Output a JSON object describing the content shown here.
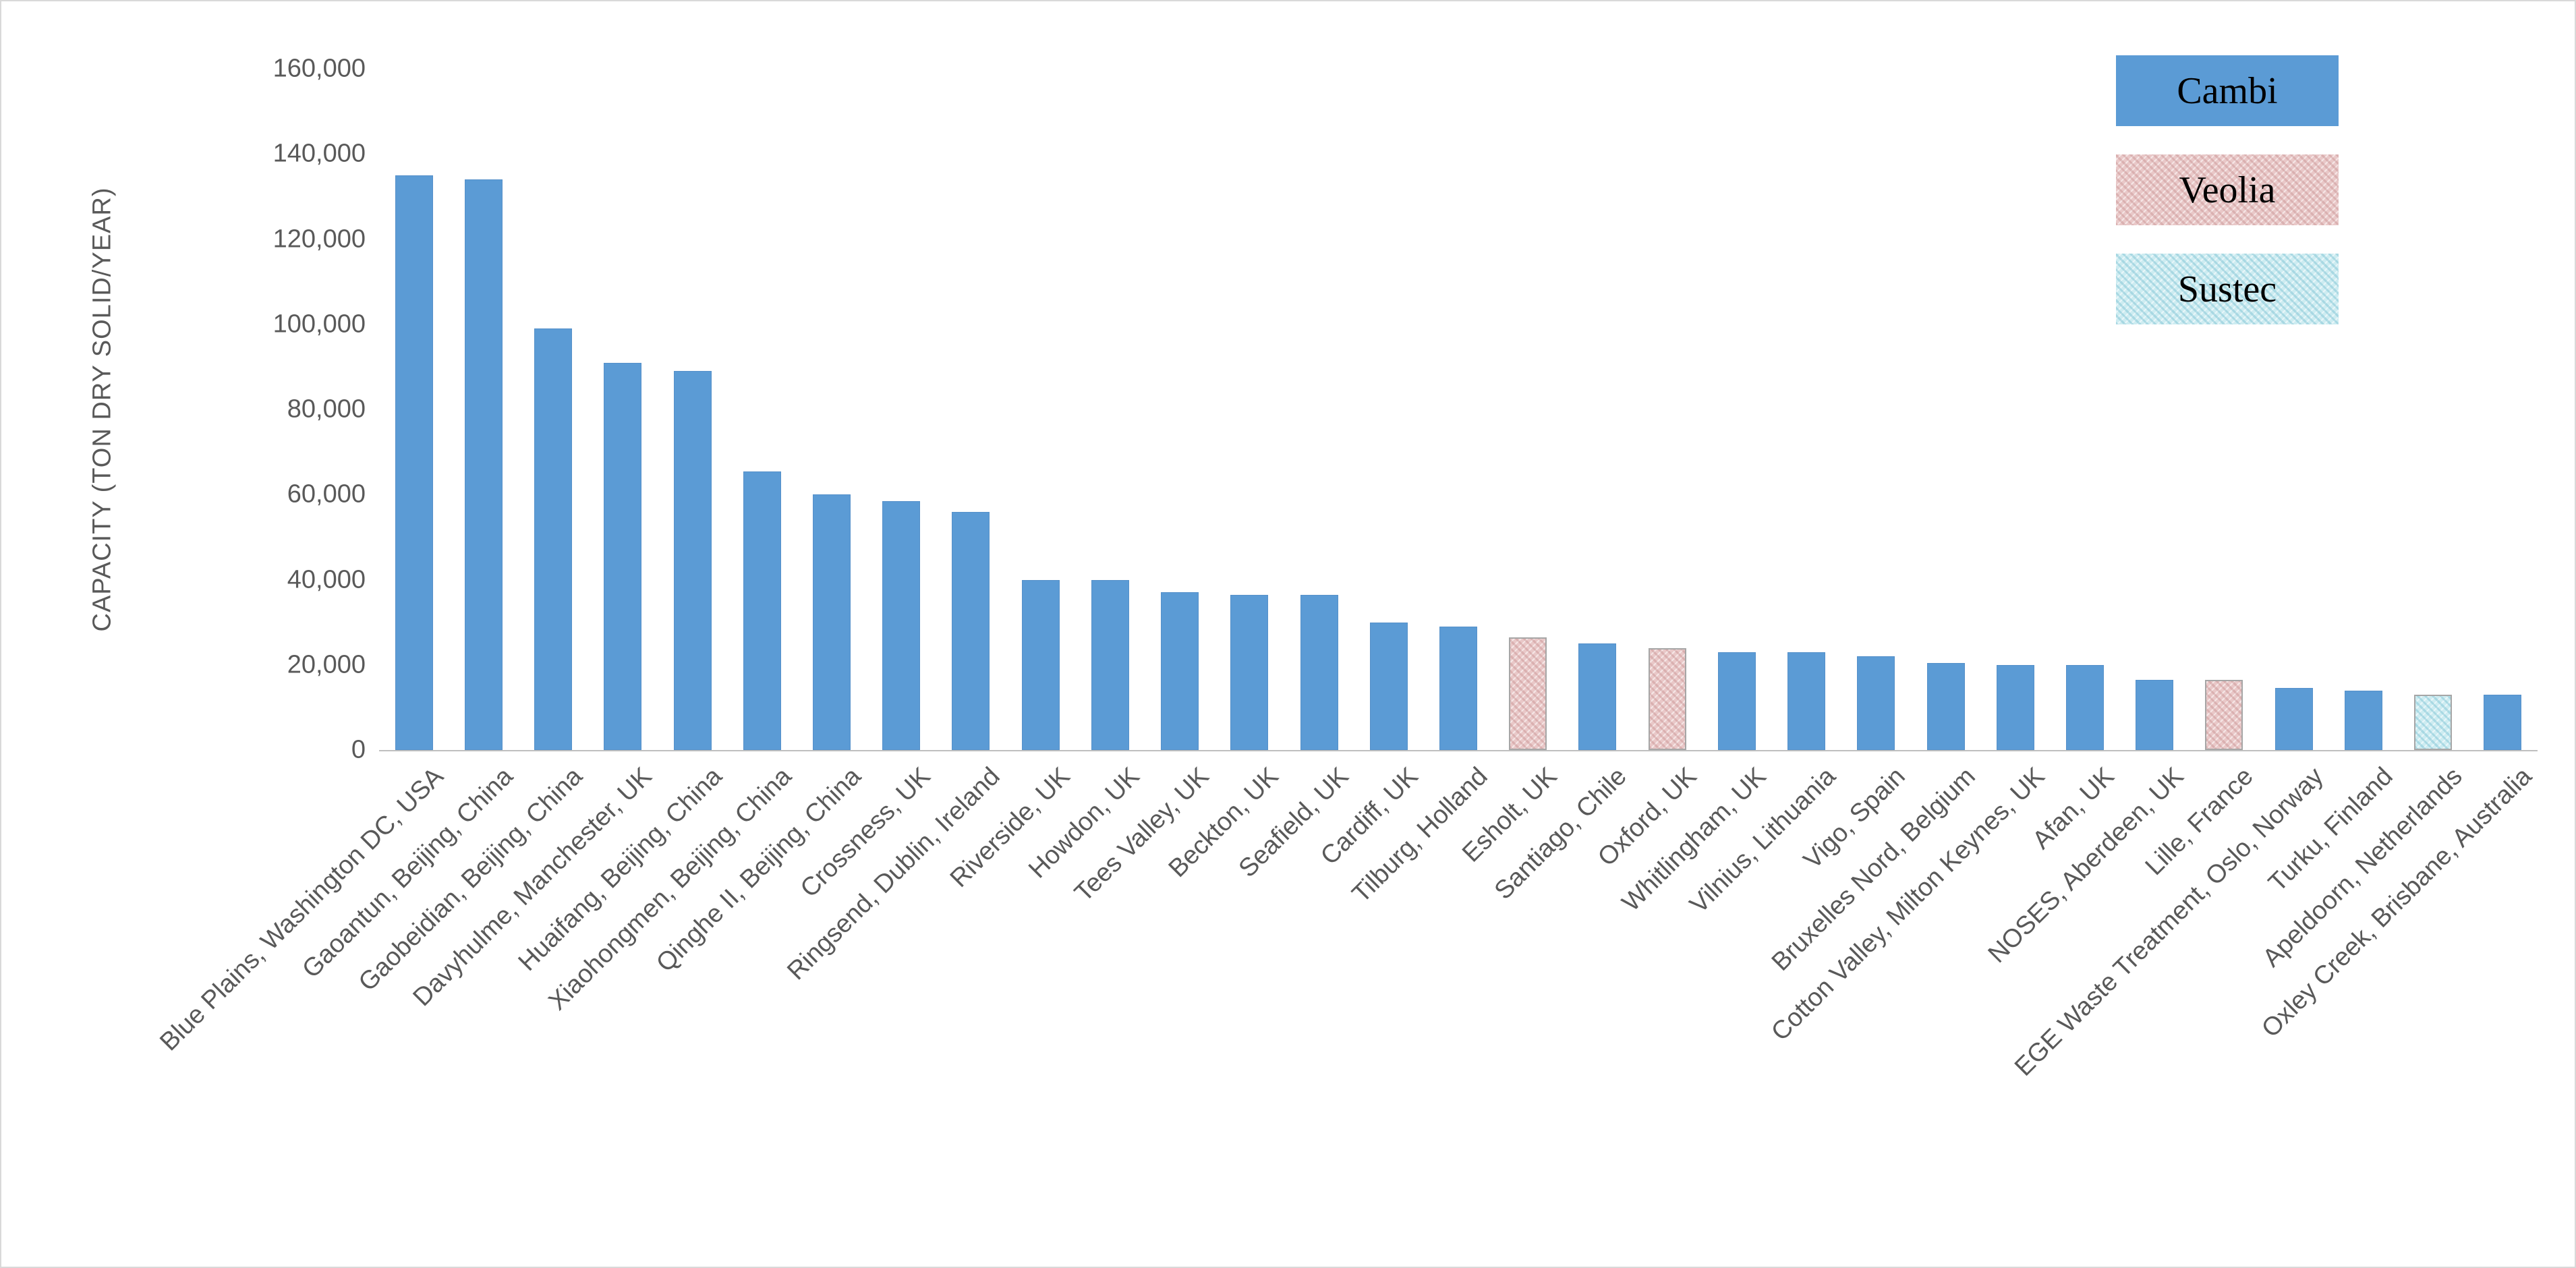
{
  "figure": {
    "background": "#FFFFFF",
    "border_color": "#D9D9D9"
  },
  "colors": {
    "cambi": "#5B9BD5",
    "veolia": "#E9C8C8",
    "sustec": "#CDECF1",
    "axis_text": "#595959",
    "bar_border": "#A6A6A6"
  },
  "legend": {
    "position": "top-right",
    "entries": [
      {
        "label": "Cambi",
        "color": "#5B9BD5",
        "texture": "solid"
      },
      {
        "label": "Veolia",
        "color": "#E9C8C8",
        "texture": "mottled"
      },
      {
        "label": "Sustec",
        "color": "#CDECF1",
        "texture": "mottled"
      }
    ]
  },
  "chart_data": {
    "type": "bar",
    "title": "",
    "xlabel": "",
    "ylabel": "CAPACITY (TON DRY SOLID/YEAR)",
    "ylim": [
      0,
      160000
    ],
    "ytick_step": 20000,
    "ytick_labels": [
      "0",
      "20,000",
      "40,000",
      "60,000",
      "80,000",
      "100,000",
      "120,000",
      "140,000",
      "160,000"
    ],
    "grid": false,
    "legend_position": "top-right",
    "categories": [
      "Blue Plains, Washington DC, USA",
      "Gaoantun, Beijing, China",
      "Gaobeidian, Beijing, China",
      "Davyhulme, Manchester, UK",
      "Huaifang, Beijing, China",
      "Xiaohongmen, Beijing, China",
      "Qinghe II, Beijing, China",
      "Crossness, UK",
      "Ringsend, Dublin, Ireland",
      "Riverside, UK",
      "Howdon, UK",
      "Tees Valley, UK",
      "Beckton, UK",
      "Seafield, UK",
      "Cardiff, UK",
      "Tilburg, Holland",
      "Esholt, UK",
      "Santiago, Chile",
      "Oxford, UK",
      "Whitlingham, UK",
      "Vilnius, Lithuania",
      "Vigo, Spain",
      "Bruxelles Nord, Belgium",
      "Cotton Valley, Milton Keynes, UK",
      "Afan, UK",
      "NOSES, Aberdeen, UK",
      "Lille, France",
      "EGE Waste Treatment, Oslo, Norway",
      "Turku, Finland",
      "Apeldoorn, Netherlands",
      "Oxley Creek, Brisbane, Australia"
    ],
    "values": [
      135000,
      134000,
      99000,
      91000,
      89000,
      65500,
      60000,
      58500,
      56000,
      40000,
      40000,
      37000,
      36500,
      36500,
      30000,
      29000,
      26500,
      25000,
      24000,
      23000,
      23000,
      22000,
      20500,
      20000,
      20000,
      16500,
      16500,
      14500,
      14000,
      13000,
      13000
    ],
    "vendors": [
      "Cambi",
      "Cambi",
      "Cambi",
      "Cambi",
      "Cambi",
      "Cambi",
      "Cambi",
      "Cambi",
      "Cambi",
      "Cambi",
      "Cambi",
      "Cambi",
      "Cambi",
      "Cambi",
      "Cambi",
      "Cambi",
      "Veolia",
      "Cambi",
      "Veolia",
      "Cambi",
      "Cambi",
      "Cambi",
      "Cambi",
      "Cambi",
      "Cambi",
      "Cambi",
      "Veolia",
      "Cambi",
      "Cambi",
      "Sustec",
      "Cambi"
    ]
  }
}
